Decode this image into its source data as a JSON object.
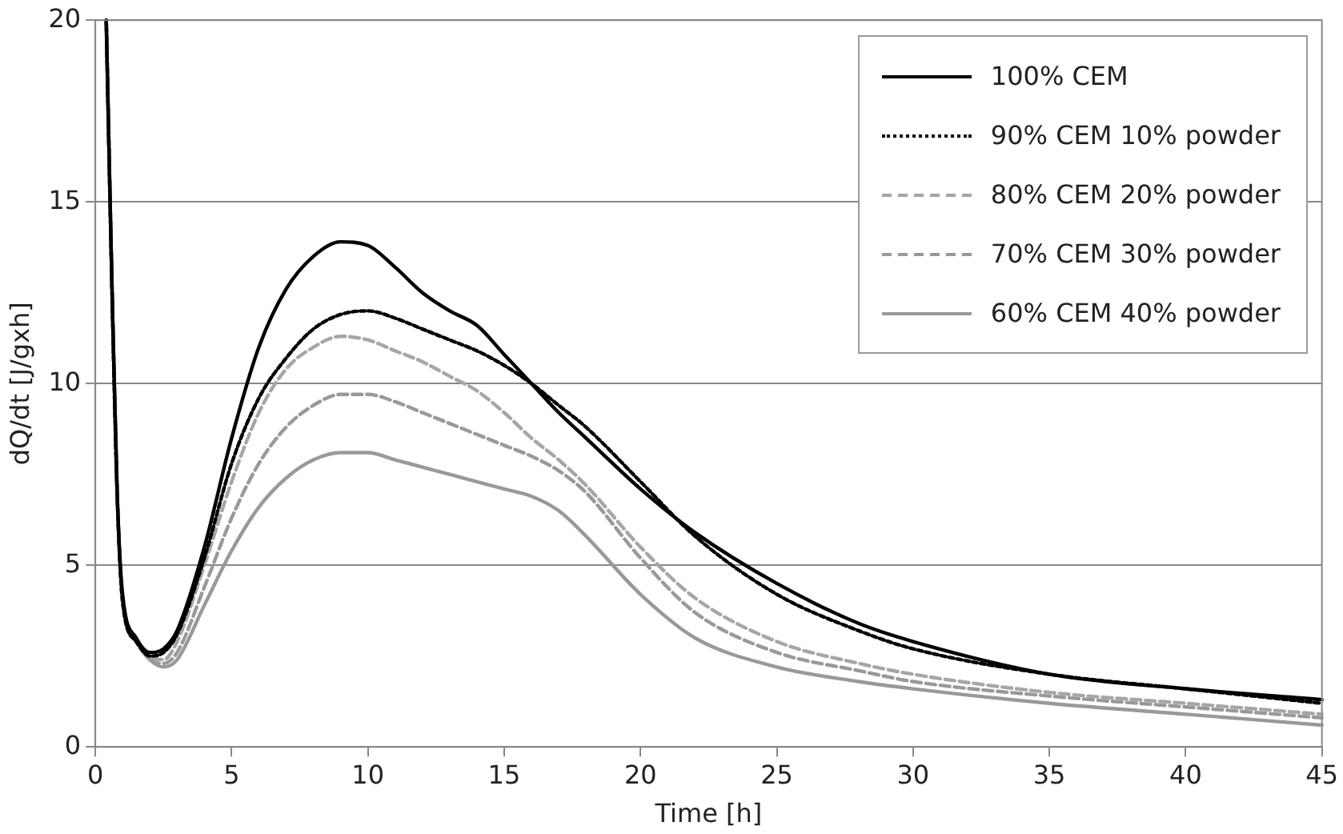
{
  "chart_data": {
    "type": "line",
    "xlabel": "Time [h]",
    "ylabel": "dQ/dt [J/gxh]",
    "x": [
      0.4,
      0.6,
      0.8,
      1,
      1.5,
      2,
      2.5,
      3,
      4,
      5,
      6,
      7,
      8,
      9,
      10,
      11,
      12,
      13,
      14,
      15,
      16,
      17,
      18,
      20,
      22,
      25,
      28,
      30,
      35,
      40,
      45
    ],
    "series": [
      {
        "name": "100% CEM",
        "color": "#000000",
        "line_style": "solid",
        "values": [
          20,
          13,
          7,
          4.2,
          3.0,
          2.6,
          2.7,
          3.2,
          5.5,
          8.5,
          11.0,
          12.6,
          13.5,
          13.9,
          13.8,
          13.2,
          12.5,
          12.0,
          11.6,
          10.8,
          10.0,
          9.2,
          8.5,
          7.1,
          5.9,
          4.5,
          3.4,
          2.9,
          2.0,
          1.6,
          1.3
        ]
      },
      {
        "name": "90% CEM 10% powder",
        "color": "#000000",
        "line_style": "dotted",
        "values": [
          20,
          13,
          7,
          4.0,
          2.9,
          2.5,
          2.6,
          3.1,
          5.2,
          7.8,
          9.6,
          10.7,
          11.5,
          11.9,
          12.0,
          11.8,
          11.5,
          11.2,
          10.9,
          10.5,
          10.0,
          9.4,
          8.8,
          7.3,
          5.8,
          4.2,
          3.2,
          2.7,
          2.0,
          1.6,
          1.2
        ]
      },
      {
        "name": "80% CEM 20% powder",
        "color": "#a6a6a6",
        "line_style": "dashed",
        "values": [
          20,
          13,
          7,
          4.0,
          2.9,
          2.5,
          2.4,
          2.9,
          5.0,
          7.3,
          9.2,
          10.4,
          11.0,
          11.3,
          11.2,
          10.9,
          10.6,
          10.2,
          9.8,
          9.2,
          8.5,
          7.9,
          7.2,
          5.5,
          4.1,
          2.9,
          2.3,
          2.0,
          1.5,
          1.2,
          0.9
        ]
      },
      {
        "name": "70% CEM 30% powder",
        "color": "#999999",
        "line_style": "dashed",
        "values": [
          20,
          13,
          7,
          4.0,
          2.9,
          2.4,
          2.3,
          2.6,
          4.4,
          6.3,
          7.8,
          8.8,
          9.4,
          9.7,
          9.7,
          9.5,
          9.2,
          8.9,
          8.6,
          8.3,
          8.0,
          7.6,
          7.0,
          5.2,
          3.7,
          2.6,
          2.1,
          1.8,
          1.4,
          1.1,
          0.8
        ]
      },
      {
        "name": "60% CEM 40% powder",
        "color": "#999999",
        "line_style": "solid",
        "values": [
          20,
          13,
          7,
          4.0,
          2.9,
          2.4,
          2.2,
          2.4,
          3.9,
          5.4,
          6.6,
          7.4,
          7.9,
          8.1,
          8.1,
          7.9,
          7.7,
          7.5,
          7.3,
          7.1,
          6.9,
          6.5,
          5.8,
          4.2,
          3.0,
          2.2,
          1.8,
          1.6,
          1.2,
          0.9,
          0.6
        ]
      }
    ],
    "xlim": [
      0,
      45
    ],
    "xticks": [
      0,
      5,
      10,
      15,
      20,
      25,
      30,
      35,
      40,
      45
    ],
    "ylim": [
      0,
      20
    ],
    "yticks": [
      0,
      5,
      10,
      15,
      20
    ],
    "grid": "y",
    "legend": "top right",
    "marker": "none"
  }
}
